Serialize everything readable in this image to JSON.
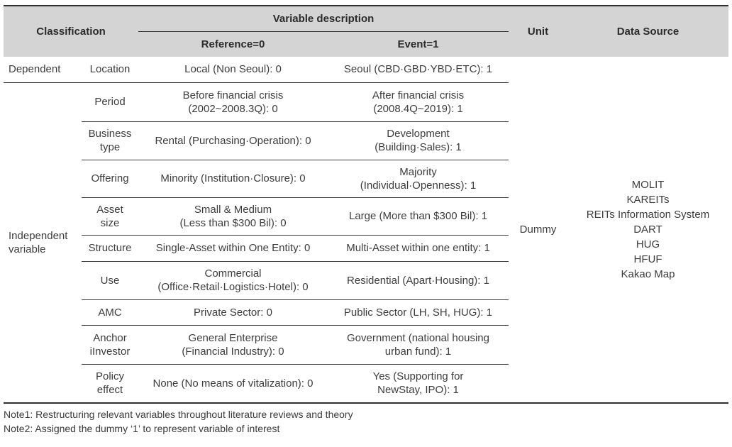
{
  "colors": {
    "header_bg": "#d4d4d4",
    "rule_color": "#2f2f2f",
    "text_color": "#3d3d3d"
  },
  "table": {
    "header": {
      "classification": "Classification",
      "variable_description": "Variable description",
      "reference": "Reference=0",
      "event": "Event=1",
      "unit": "Unit",
      "data_source": "Data Source"
    },
    "unit_value": "Dummy",
    "data_sources": [
      "MOLIT",
      "KAREITs",
      "REITs Information System",
      "DART",
      "HUG",
      "HFUF",
      "Kakao Map"
    ],
    "rows": [
      {
        "classification": "Dependent",
        "variable": "Location",
        "reference": "Local (Non Seoul): 0",
        "event": "Seoul (CBD·GBD·YBD·ETC): 1"
      },
      {
        "classification": "Independent\nvariable",
        "variable": "Period",
        "reference": "Before financial crisis\n(2002~2008.3Q): 0",
        "event": "After financial crisis\n(2008.4Q~2019): 1"
      },
      {
        "variable": "Business\ntype",
        "reference": "Rental (Purchasing·Operation): 0",
        "event": "Development\n(Building·Sales): 1"
      },
      {
        "variable": "Offering",
        "reference": "Minority (Institution·Closure): 0",
        "event": "Majority\n(Individual·Openness): 1"
      },
      {
        "variable": "Asset\nsize",
        "reference": "Small & Medium\n(Less than $300 Bil): 0",
        "event": "Large (More than $300 Bil): 1"
      },
      {
        "variable": "Structure",
        "reference": "Single-Asset within One Entity: 0",
        "event": "Multi-Asset within one entity: 1"
      },
      {
        "variable": "Use",
        "reference": "Commercial\n(Office·Retail·Logistics·Hotel): 0",
        "event": "Residential (Apart·Housing): 1"
      },
      {
        "variable": "AMC",
        "reference": "Private Sector: 0",
        "event": "Public Sector (LH, SH, HUG): 1"
      },
      {
        "variable": "Anchor\niInvestor",
        "reference": "General Enterprise\n(Financial Industry): 0",
        "event": "Government (national housing\nurban fund): 1"
      },
      {
        "variable": "Policy\neffect",
        "reference": "None (No means of vitalization): 0",
        "event": "Yes (Supporting for\nNewStay, IPO): 1"
      }
    ],
    "notes": [
      "Note1: Restructuring relevant variables throughout literature reviews and theory",
      "Note2: Assigned the dummy ‘1’ to represent variable of interest"
    ]
  }
}
